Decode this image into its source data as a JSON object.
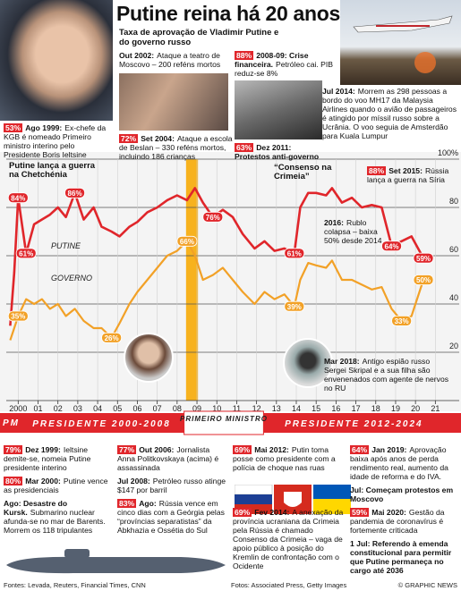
{
  "chart_data": {
    "type": "line",
    "title": "Putine reina há 20 anos",
    "subtitle": "Taxa de aprovação de Vladimir Putine e do governo russo",
    "x": [
      1999.6,
      1999.8,
      2000.0,
      2000.4,
      2000.8,
      2001.2,
      2001.6,
      2002.0,
      2002.4,
      2002.85,
      2003.3,
      2003.8,
      2004.2,
      2004.7,
      2005.1,
      2005.6,
      2006.0,
      2006.5,
      2007.0,
      2007.5,
      2008.0,
      2008.5,
      2008.9,
      2009.3,
      2009.8,
      2010.3,
      2010.8,
      2011.3,
      2011.9,
      2012.4,
      2012.9,
      2013.4,
      2013.9,
      2014.2,
      2014.6,
      2015.0,
      2015.5,
      2015.8,
      2016.3,
      2016.8,
      2017.3,
      2017.8,
      2018.3,
      2018.8,
      2019.3,
      2019.8,
      2020.4
    ],
    "series": [
      {
        "name": "PUTINE",
        "color": "#e0262b",
        "values": [
          31,
          53,
          84,
          61,
          73,
          75,
          77,
          80,
          76,
          86,
          75,
          80,
          72,
          70,
          68,
          72,
          74,
          78,
          80,
          83,
          85,
          83,
          88,
          82,
          76,
          79,
          76,
          69,
          63,
          66,
          62,
          63,
          61,
          80,
          86,
          86,
          85,
          88,
          82,
          84,
          80,
          81,
          80,
          64,
          66,
          68,
          59
        ]
      },
      {
        "name": "GOVERNO",
        "color": "#f2a127",
        "values": [
          25,
          30,
          35,
          42,
          40,
          42,
          38,
          40,
          35,
          38,
          33,
          30,
          30,
          26,
          32,
          40,
          45,
          50,
          55,
          60,
          62,
          66,
          60,
          50,
          52,
          55,
          50,
          45,
          40,
          45,
          42,
          44,
          39,
          50,
          57,
          56,
          55,
          58,
          50,
          50,
          48,
          46,
          47,
          38,
          33,
          35,
          50
        ]
      }
    ],
    "xlim": [
      1999.4,
      2021.3
    ],
    "xticks": [
      {
        "value": 2000,
        "label": "2000"
      },
      {
        "value": 2001,
        "label": "01"
      },
      {
        "value": 2002,
        "label": "02"
      },
      {
        "value": 2003,
        "label": "03"
      },
      {
        "value": 2004,
        "label": "04"
      },
      {
        "value": 2005,
        "label": "05"
      },
      {
        "value": 2006,
        "label": "06"
      },
      {
        "value": 2007,
        "label": "07"
      },
      {
        "value": 2008,
        "label": "08"
      },
      {
        "value": 2009,
        "label": "09"
      },
      {
        "value": 2010,
        "label": "10"
      },
      {
        "value": 2011,
        "label": "11"
      },
      {
        "value": 2012,
        "label": "12"
      },
      {
        "value": 2013,
        "label": "13"
      },
      {
        "value": 2014,
        "label": "14"
      },
      {
        "value": 2015,
        "label": "15"
      },
      {
        "value": 2016,
        "label": "16"
      },
      {
        "value": 2017,
        "label": "17"
      },
      {
        "value": 2018,
        "label": "18"
      },
      {
        "value": 2019,
        "label": "19"
      },
      {
        "value": 2020,
        "label": "20"
      },
      {
        "value": 2021,
        "label": "21"
      }
    ],
    "ylim": [
      0,
      100
    ],
    "yticks": [
      20,
      40,
      60,
      80,
      {
        "value": 100,
        "label": "100%"
      }
    ],
    "grid": true,
    "callouts": [
      {
        "x": 2000.0,
        "value": 84,
        "label": "84%",
        "color": "#e0262b"
      },
      {
        "x": 2000.4,
        "value": 61,
        "label": "61%",
        "color": "#e0262b"
      },
      {
        "x": 2002.85,
        "value": 86,
        "label": "86%",
        "color": "#e0262b"
      },
      {
        "x": 2000.0,
        "value": 35,
        "label": "35%",
        "color": "#f2a127"
      },
      {
        "x": 2004.7,
        "value": 26,
        "label": "26%",
        "color": "#f2a127"
      },
      {
        "x": 2008.5,
        "value": 66,
        "label": "66%",
        "color": "#f2a127"
      },
      {
        "x": 2009.8,
        "value": 76,
        "label": "76%",
        "color": "#e0262b"
      },
      {
        "x": 2013.9,
        "value": 61,
        "label": "61%",
        "color": "#e0262b"
      },
      {
        "x": 2013.9,
        "value": 39,
        "label": "39%",
        "color": "#f2a127"
      },
      {
        "x": 2018.8,
        "value": 64,
        "label": "64%",
        "color": "#e0262b"
      },
      {
        "x": 2020.4,
        "value": 59,
        "label": "59%",
        "color": "#e0262b"
      },
      {
        "x": 2020.4,
        "value": 50,
        "label": "50%",
        "color": "#f2a127"
      },
      {
        "x": 2019.3,
        "value": 33,
        "label": "33%",
        "color": "#f2a127"
      }
    ],
    "annotations": [
      {
        "pct": "53%",
        "head": "Ago 1999:",
        "text": "Ex-chefe da KGB é nomeado Primeiro ministro interino pelo Presidente Boris Ieltsine"
      },
      {
        "head": "Out 2002:",
        "text": "Ataque a teatro de Moscovo – 200 reféns mortos"
      },
      {
        "pct": "72%",
        "head": "Set 2004:",
        "text": "Ataque a escola de Beslan – 330 reféns mortos, incluindo 186 crianças"
      },
      {
        "pct": "88%",
        "head": "2008-09: Crise financeira.",
        "text": "Petróleo cai. PIB reduz-se 8%"
      },
      {
        "pct": "63%",
        "head": "Dez 2011: Protestos anti-governo"
      },
      {
        "head": "Jul 2014:",
        "text": "Morrem as 298 pessoas a bordo do voo MH17 da Malaysia Airlines quando o avião de passageiros é atingido por míssil russo sobre a Ucrânia. O voo seguia de Amsterdão para Kuala Lumpur"
      },
      {
        "head": "Putine lança a guerra na Chetchénia"
      },
      {
        "head": "“Consenso na Crimeia”"
      },
      {
        "pct": "88%",
        "head": "Set 2015:",
        "text": "Rússia lança a guerra na Síria"
      },
      {
        "head": "2016:",
        "text": "Rublo colapsa – baixa 50% desde 2014"
      },
      {
        "head": "Mar 2018:",
        "text": "Antigo espião russo Sergei Skripal e a sua filha são envenenados com agente de nervos no RU"
      }
    ],
    "timeline": [
      "PM",
      "PRESIDENTE 2000-2008",
      "PRIMEIRO MINISTRO",
      "PRESIDENTE 2012-2024"
    ],
    "columns": [
      [
        {
          "pct": "79%",
          "head": "Dez 1999:",
          "text": "Ieltsine demite-se, nomeia Putine presidente interino"
        },
        {
          "pct": "80%",
          "head": "Mar 2000:",
          "text": "Putine vence as presidenciais"
        },
        {
          "head": "Ago: Desastre do Kursk.",
          "text": "Submarino nuclear afunda-se no mar de Barents. Morrem os 118 tripulantes"
        }
      ],
      [
        {
          "pct": "77%",
          "head": "Out 2006:",
          "text": "Jornalista Anna Politkovskaya (acima) é assassinada"
        },
        {
          "head": "Jul 2008:",
          "text": "Petróleo russo atinge $147 por barril"
        },
        {
          "pct": "83%",
          "head": "Ago:",
          "text": "Rússia vence em cinco dias com a Geórgia pelas “províncias separatistas” da Abkhazia e Ossétia do Sul"
        }
      ],
      [
        {
          "pct": "69%",
          "head": "Mai 2012:",
          "text": "Putin toma posse como presidente com a polícia de choque nas ruas"
        },
        {
          "pct": "69%",
          "head": "Fev 2014:",
          "text": "A anexação da província ucraniana da Crimeia pela Rússia é chamado Consenso da Crimeia – vaga de apoio público à posição do Kremlin de confrontação com o Ocidente"
        }
      ],
      [
        {
          "pct": "64%",
          "head": "Jan 2019:",
          "text": "Aprovação baixa após anos de perda rendimento real, aumento da idade de reforma e do IVA."
        },
        {
          "head": "Jul: Começam protestos em Moscovo"
        },
        {
          "pct": "59%",
          "head": "Mai 2020:",
          "text": "Gestão da pandemia de coronavírus é fortemente criticada"
        },
        {
          "head": "1 Jul: Referendo à emenda constitucional para permitir que Putine permaneça no cargo até 2036"
        }
      ]
    ],
    "footer": [
      "Fontes: Levada, Reuters, Financial Times, CNN",
      "Fotos: Associated Press, Getty Images",
      "© GRAPHIC NEWS"
    ]
  }
}
